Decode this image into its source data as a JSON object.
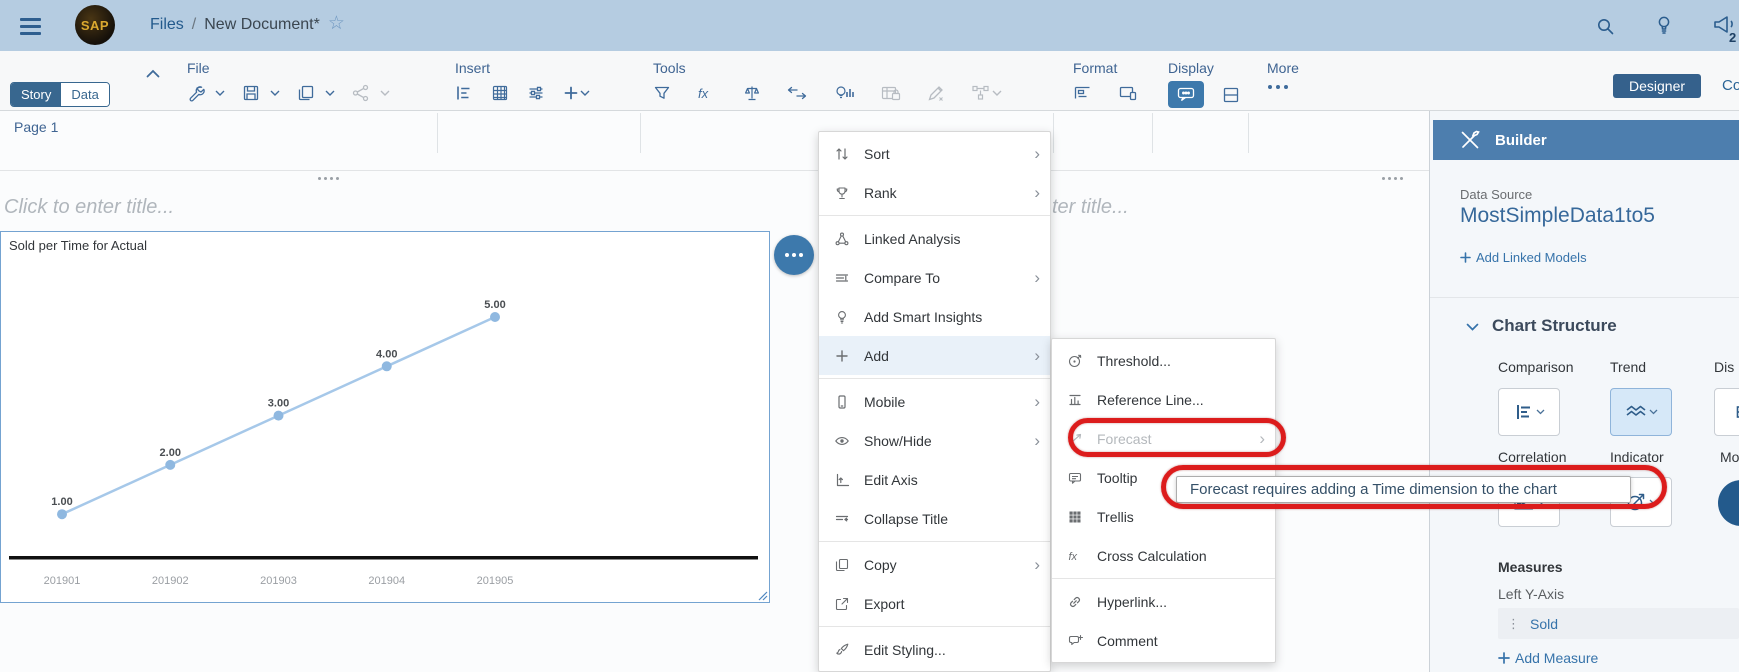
{
  "colors": {
    "topbar-bg": "#b5cce1",
    "accent": "#3673aa",
    "icon-blue": "#3f6b9b",
    "active-dark": "#35618c",
    "builder-header-bg": "#4d7eae",
    "selection-blue": "#74a3d1",
    "annotation-red": "#dc1c1c",
    "line-blue": "#a6c8e9",
    "point-blue": "#8fb8e0",
    "menu-highlight": "#e9f1f9",
    "disabled-gray": "#b7bcc2"
  },
  "topbar": {
    "logo_text": "SAP",
    "breadcrumb_root": "Files",
    "breadcrumb_separator": "/",
    "document_title": "New Document*",
    "notification_badge": "2"
  },
  "view_tabs": {
    "story": "Story",
    "data": "Data"
  },
  "toolbar": {
    "file_label": "File",
    "insert_label": "Insert",
    "tools_label": "Tools",
    "format_label": "Format",
    "display_label": "Display",
    "more_label": "More",
    "designer_button": "Designer",
    "controls_partial": "Co"
  },
  "page": {
    "tab_label": "Page 1",
    "title_placeholder": "Click to enter title...",
    "second_title_fragment": "ter title..."
  },
  "context_menu": {
    "items": [
      "Sort",
      "Rank",
      "Linked Analysis",
      "Compare To",
      "Add Smart Insights",
      "Add",
      "Mobile",
      "Show/Hide",
      "Edit Axis",
      "Collapse Title",
      "Copy",
      "Export",
      "Edit Styling..."
    ]
  },
  "add_submenu": {
    "items": [
      "Threshold...",
      "Reference Line...",
      "Forecast",
      "Tooltip",
      "Trellis",
      "Cross Calculation",
      "Hyperlink...",
      "Comment"
    ]
  },
  "tooltip": {
    "text": "Forecast requires adding a Time dimension to the chart"
  },
  "builder": {
    "title": "Builder",
    "data_source_label": "Data Source",
    "data_source_name": "MostSimpleData1to5",
    "add_linked_models": "Add Linked Models",
    "chart_structure_label": "Chart Structure",
    "comparison_label": "Comparison",
    "trend_label": "Trend",
    "distribution_label_partial": "Dis",
    "correlation_label": "Correlation",
    "indicator_label": "Indicator",
    "more_label_partial": "Mo",
    "measures_label": "Measures",
    "left_y_axis_label": "Left Y-Axis",
    "measure_name": "Sold",
    "add_measure": "Add Measure"
  },
  "chart_data": {
    "type": "line",
    "title": "Sold per Time for Actual",
    "x": [
      "201901",
      "201902",
      "201903",
      "201904",
      "201905"
    ],
    "series": [
      {
        "name": "Sold",
        "values": [
          1.0,
          2.0,
          3.0,
          4.0,
          5.0
        ]
      }
    ],
    "point_labels": [
      "1.00",
      "2.00",
      "3.00",
      "4.00",
      "5.00"
    ],
    "ylim": [
      0,
      5.5
    ],
    "grid": false,
    "legend": false
  }
}
